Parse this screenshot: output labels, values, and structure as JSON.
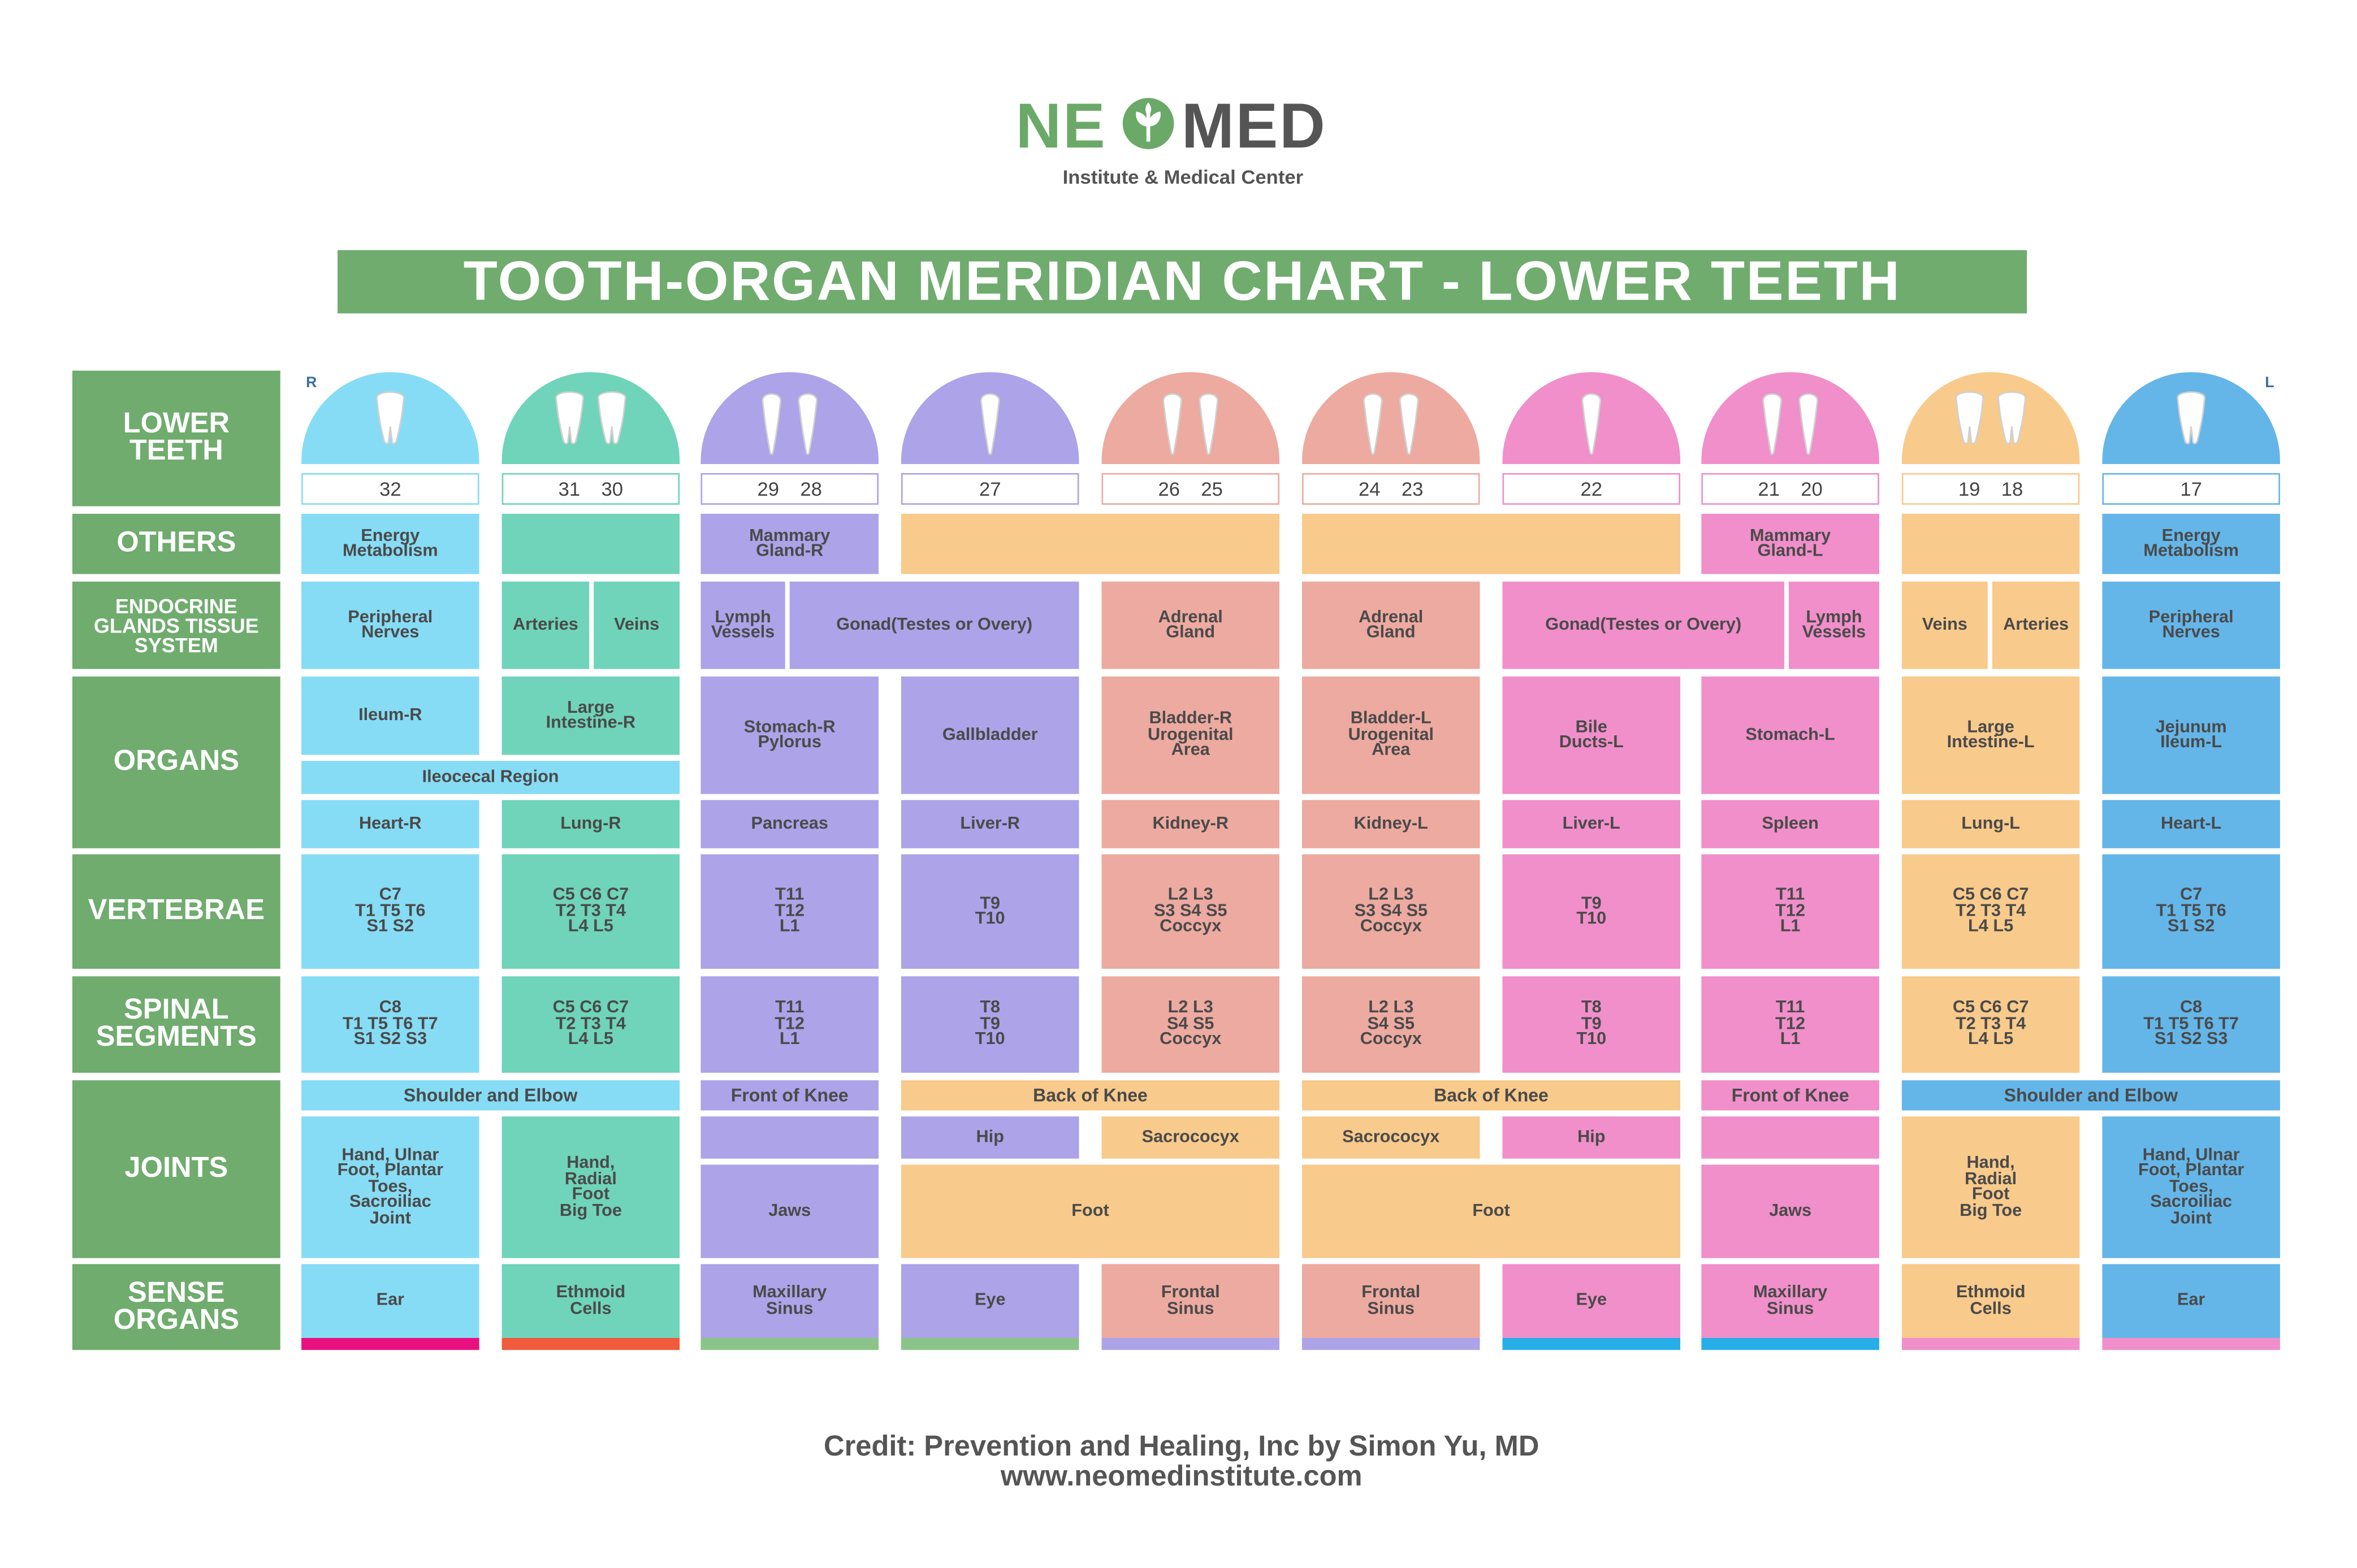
{
  "brand": {
    "name_left": "NE",
    "name_right": "MED",
    "subtitle": "Institute & Medical Center"
  },
  "title": "TOOTH-ORGAN MERIDIAN CHART - LOWER TEETH",
  "side_marks": {
    "right": "R",
    "left": "L"
  },
  "row_labels": {
    "lower_teeth": "LOWER\nTEETH",
    "others": "OTHERS",
    "endocrine": "ENDOCRINE\nGLANDS TISSUE\nSYSTEM",
    "organs": "ORGANS",
    "vertebrae": "VERTEBRAE",
    "spinal": "SPINAL\nSEGMENTS",
    "joints": "JOINTS",
    "sense": "SENSE\nORGANS"
  },
  "colors": {
    "blue": "#86dcf4",
    "teal": "#6fd4b9",
    "purple": "#ada3e8",
    "peach": "#edaaa0",
    "pink": "#f08fca",
    "orange": "#f8ca8b",
    "lightblue": "#64b6e9",
    "green": "#6fac6e"
  },
  "columns": [
    {
      "teeth": [
        "32"
      ],
      "color": "blue"
    },
    {
      "teeth": [
        "31",
        "30"
      ],
      "color": "teal"
    },
    {
      "teeth": [
        "29",
        "28"
      ],
      "color": "purple"
    },
    {
      "teeth": [
        "27"
      ],
      "color": "purple"
    },
    {
      "teeth": [
        "26",
        "25"
      ],
      "color": "peach"
    },
    {
      "teeth": [
        "24",
        "23"
      ],
      "color": "peach"
    },
    {
      "teeth": [
        "22"
      ],
      "color": "pink"
    },
    {
      "teeth": [
        "21",
        "20"
      ],
      "color": "pink"
    },
    {
      "teeth": [
        "19",
        "18"
      ],
      "color": "orange"
    },
    {
      "teeth": [
        "17"
      ],
      "color": "lightblue"
    }
  ],
  "bottom_caps": [
    "#e8117f",
    "#f05a3d",
    "#8ac48a",
    "#8ac48a",
    "#ada3e8",
    "#ada3e8",
    "#27aee8",
    "#27aee8",
    "#f08fca",
    "#f08fca"
  ],
  "others": [
    "Energy\nMetabolism",
    "",
    "Mammary\nGland-R",
    "",
    "",
    "Mammary\nGland-L",
    "",
    "Energy\nMetabolism"
  ],
  "endocrine": [
    "Peripheral\nNerves",
    "Arteries",
    "Veins",
    "Lymph\nVessels",
    "Gonad(Testes or Overy)",
    "Adrenal\nGland",
    "Adrenal\nGland",
    "Gonad(Testes or Overy)",
    "Lymph\nVessels",
    "Veins",
    "Arteries",
    "Peripheral\nNerves"
  ],
  "organs_top": [
    "Ileum-R",
    "Large\nIntestine-R",
    "Stomach-R\nPylorus",
    "Gallbladder",
    "Bladder-R\nUrogenital\nArea",
    "Bladder-L\nUrogenital\nArea",
    "Bile\nDucts-L",
    "Stomach-L",
    "Large\nIntestine-L",
    "Jejunum\nIleum-L"
  ],
  "organs_ileocecal": "Ileocecal Region",
  "organs_bottom": [
    "Heart-R",
    "Lung-R",
    "Pancreas",
    "Liver-R",
    "Kidney-R",
    "Kidney-L",
    "Liver-L",
    "Spleen",
    "Lung-L",
    "Heart-L"
  ],
  "vertebrae": [
    "C7\nT1 T5 T6\nS1 S2",
    "C5 C6 C7\nT2 T3 T4\nL4 L5",
    "T11\nT12\nL1",
    "T9\nT10",
    "L2 L3\nS3 S4 S5\nCoccyx",
    "L2 L3\nS3 S4 S5\nCoccyx",
    "T9\nT10",
    "T11\nT12\nL1",
    "C5 C6 C7\nT2 T3 T4\nL4 L5",
    "C7\nT1 T5 T6\nS1 S2"
  ],
  "spinal": [
    "C8\nT1 T5 T6 T7\nS1 S2 S3",
    "C5 C6 C7\nT2 T3 T4\nL4 L5",
    "T11\nT12\nL1",
    "T8\nT9\nT10",
    "L2 L3\nS4 S5\nCoccyx",
    "L2 L3\nS4 S5\nCoccyx",
    "T8\nT9\nT10",
    "T11\nT12\nL1",
    "C5 C6 C7\nT2 T3 T4\nL4 L5",
    "C8\nT1 T5 T6 T7\nS1 S2 S3"
  ],
  "joints": {
    "shoulder_r": "Shoulder and Elbow",
    "front_knee_r": "Front of Knee",
    "back_knee_r": "Back of Knee",
    "back_knee_l": "Back of Knee",
    "front_knee_l": "Front of Knee",
    "shoulder_l": "Shoulder and Elbow",
    "hip_r": "Hip",
    "sacrococcyx_r": "Sacrococyx",
    "sacrococcyx_l": "Sacrococyx",
    "hip_l": "Hip",
    "hand_r": "Hand, Ulnar\nFoot, Plantar\nToes,\nSacroiliac\nJoint",
    "hand_radial_r": "Hand,\nRadial\nFoot\nBig Toe",
    "jaws_r": "Jaws",
    "foot_r": "Foot",
    "foot_l": "Foot",
    "jaws_l": "Jaws",
    "hand_radial_l": "Hand,\nRadial\nFoot\nBig Toe",
    "hand_l": "Hand, Ulnar\nFoot, Plantar\nToes,\nSacroiliac\nJoint"
  },
  "sense": [
    "Ear",
    "Ethmoid\nCells",
    "Maxillary\nSinus",
    "Eye",
    "Frontal\nSinus",
    "Frontal\nSinus",
    "Eye",
    "Maxillary\nSinus",
    "Ethmoid\nCells",
    "Ear"
  ],
  "credit": {
    "line1": "Credit: Prevention and Healing, Inc by Simon Yu, MD",
    "line2": "www.neomedinstitute.com"
  }
}
